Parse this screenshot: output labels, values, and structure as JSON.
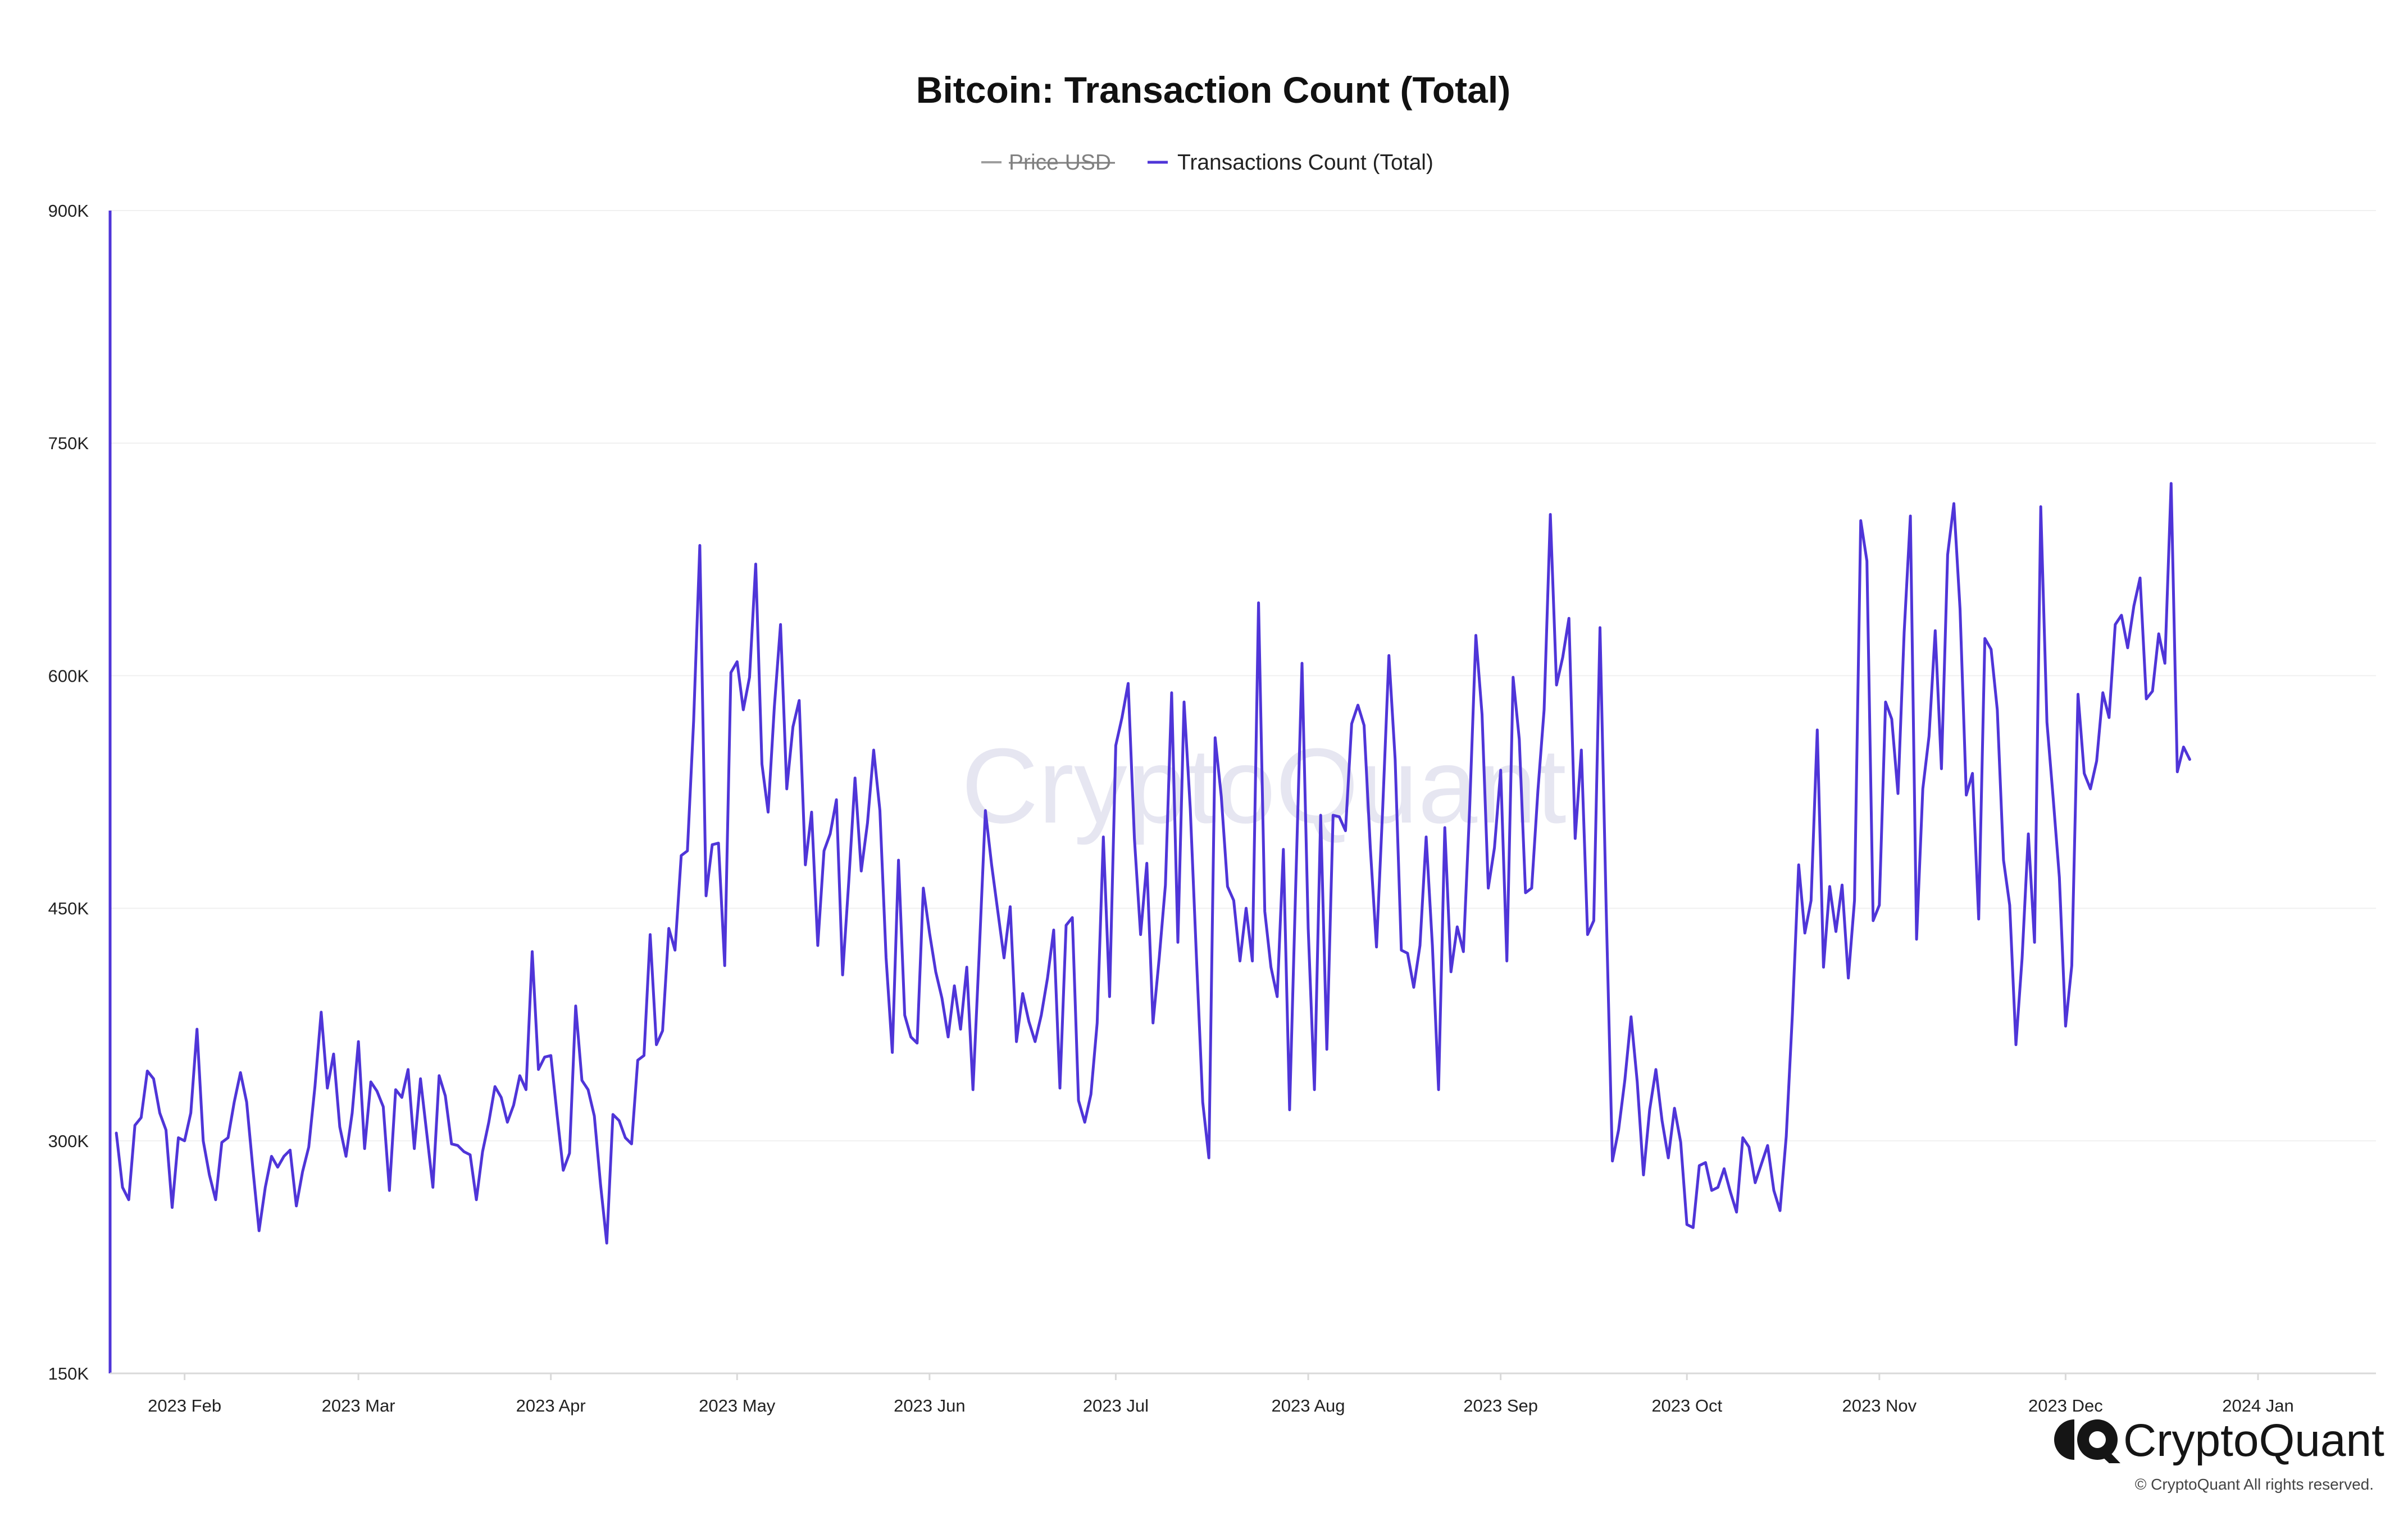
{
  "chart_data": {
    "type": "line",
    "title": "Bitcoin: Transaction Count (Total)",
    "xlabel": "",
    "ylabel": "",
    "ylim": [
      150000,
      900000
    ],
    "y_ticks": [
      {
        "value": 900000,
        "label": "900K"
      },
      {
        "value": 750000,
        "label": "750K"
      },
      {
        "value": 600000,
        "label": "600K"
      },
      {
        "value": 450000,
        "label": "450K"
      },
      {
        "value": 300000,
        "label": "300K"
      },
      {
        "value": 150000,
        "label": "150K"
      }
    ],
    "x_start": "2023-01-20",
    "x_end": "2024-01-20",
    "x_ticks": [
      {
        "date": "2023-02-01",
        "label": "2023 Feb"
      },
      {
        "date": "2023-03-01",
        "label": "2023 Mar"
      },
      {
        "date": "2023-04-01",
        "label": "2023 Apr"
      },
      {
        "date": "2023-05-01",
        "label": "2023 May"
      },
      {
        "date": "2023-06-01",
        "label": "2023 Jun"
      },
      {
        "date": "2023-07-01",
        "label": "2023 Jul"
      },
      {
        "date": "2023-08-01",
        "label": "2023 Aug"
      },
      {
        "date": "2023-09-01",
        "label": "2023 Sep"
      },
      {
        "date": "2023-10-01",
        "label": "2023 Oct"
      },
      {
        "date": "2023-11-01",
        "label": "2023 Nov"
      },
      {
        "date": "2023-12-01",
        "label": "2023 Dec"
      },
      {
        "date": "2024-01-01",
        "label": "2024 Jan"
      }
    ],
    "legend": {
      "placement": "top-center",
      "items": [
        {
          "name": "Price USD",
          "color": "#9e9e9e",
          "disabled": true
        },
        {
          "name": "Transactions Count (Total)",
          "color": "#4f35d8",
          "disabled": false
        }
      ]
    },
    "grid": true,
    "series": [
      {
        "name": "Transactions Count (Total)",
        "color": "#4f35d8",
        "start_date": "2023-01-21",
        "values": [
          305000,
          270000,
          262000,
          310000,
          315000,
          345000,
          340000,
          318000,
          307000,
          257000,
          302000,
          300000,
          318000,
          372000,
          300000,
          278000,
          262000,
          299000,
          302000,
          325000,
          344000,
          325000,
          282000,
          242000,
          270000,
          290000,
          283000,
          290000,
          294000,
          258000,
          280000,
          296000,
          335000,
          383000,
          334000,
          356000,
          309000,
          290000,
          318000,
          364000,
          295000,
          338000,
          332000,
          322000,
          268000,
          333000,
          328000,
          346000,
          295000,
          340000,
          305000,
          270000,
          342000,
          329000,
          298000,
          297000,
          293000,
          291000,
          262000,
          293000,
          312000,
          335000,
          328000,
          312000,
          323000,
          342000,
          333000,
          422000,
          346000,
          354000,
          355000,
          317000,
          281000,
          292000,
          387000,
          339000,
          333000,
          316000,
          272000,
          234000,
          317000,
          313000,
          302000,
          298000,
          352000,
          355000,
          433000,
          362000,
          371000,
          437000,
          423000,
          484000,
          487000,
          571000,
          684000,
          458000,
          491000,
          492000,
          413000,
          602000,
          609000,
          578000,
          599000,
          672000,
          543000,
          512000,
          580000,
          633000,
          527000,
          567000,
          584000,
          478000,
          512000,
          426000,
          487000,
          498000,
          520000,
          407000,
          468000,
          534000,
          474000,
          505000,
          552000,
          513000,
          418000,
          357000,
          481000,
          381000,
          367000,
          363000,
          463000,
          434000,
          409000,
          392000,
          367000,
          400000,
          372000,
          412000,
          333000,
          421000,
          513000,
          478000,
          448000,
          418000,
          451000,
          364000,
          395000,
          377000,
          364000,
          381000,
          405000,
          436000,
          334000,
          439000,
          444000,
          326000,
          312000,
          330000,
          376000,
          496000,
          393000,
          555000,
          573000,
          595000,
          495000,
          433000,
          479000,
          376000,
          418000,
          465000,
          589000,
          428000,
          583000,
          514000,
          418000,
          325000,
          289000,
          560000,
          522000,
          464000,
          455000,
          416000,
          450000,
          416000,
          647000,
          448000,
          412000,
          393000,
          488000,
          320000,
          466000,
          608000,
          437000,
          333000,
          510000,
          359000,
          510000,
          509000,
          500000,
          569000,
          581000,
          568000,
          489000,
          425000,
          515000,
          613000,
          546000,
          423000,
          421000,
          399000,
          426000,
          496000,
          426000,
          333000,
          502000,
          409000,
          438000,
          422000,
          514000,
          626000,
          575000,
          463000,
          489000,
          539000,
          416000,
          599000,
          559000,
          460000,
          463000,
          526000,
          578000,
          704000,
          594000,
          612000,
          637000,
          495000,
          552000,
          433000,
          442000,
          631000,
          450000,
          287000,
          307000,
          339000,
          380000,
          338000,
          278000,
          320000,
          346000,
          313000,
          289000,
          321000,
          299000,
          246000,
          244000,
          284000,
          286000,
          268000,
          270000,
          282000,
          267000,
          254000,
          302000,
          296000,
          273000,
          285000,
          297000,
          268000,
          255000,
          303000,
          382000,
          478000,
          434000,
          455000,
          565000,
          412000,
          464000,
          435000,
          465000,
          405000,
          455000,
          700000,
          674000,
          442000,
          452000,
          583000,
          572000,
          524000,
          628000,
          703000,
          430000,
          527000,
          561000,
          629000,
          540000,
          678000,
          711000,
          643000,
          523000,
          537000,
          443000,
          624000,
          617000,
          578000,
          481000,
          452000,
          362000,
          418000,
          498000,
          428000,
          709000,
          570000,
          521000,
          470000,
          374000,
          413000,
          588000,
          537000,
          527000,
          545000,
          589000,
          573000,
          633000,
          639000,
          618000,
          645000,
          663000,
          585000,
          590000,
          627000,
          608000,
          724000,
          538000,
          554000,
          546000
        ]
      }
    ]
  },
  "legend": {
    "price_label": "Price USD",
    "tx_label": "Transactions Count (Total)"
  },
  "watermark": "CryptoQuant",
  "brand": {
    "name": "CryptoQuant",
    "copyright": "© CryptoQuant All rights reserved."
  },
  "colors": {
    "series": "#4f35d8",
    "disabled": "#9e9e9e",
    "grid": "#f0f0f0",
    "axis": "#d9d9d9"
  }
}
